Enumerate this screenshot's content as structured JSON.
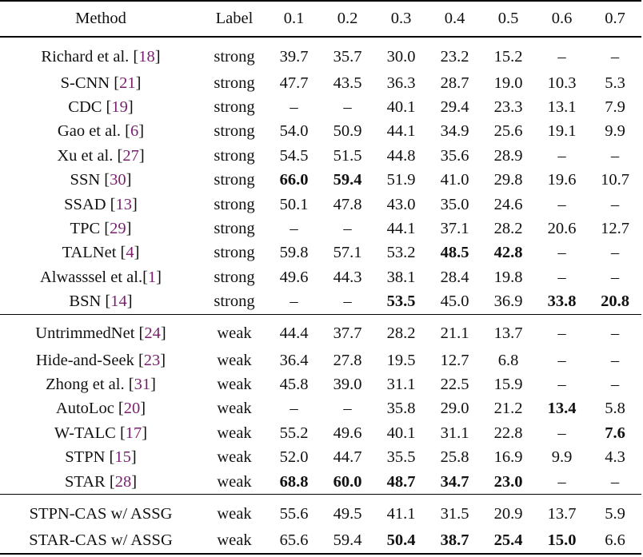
{
  "columns": [
    "Method",
    "Label",
    "0.1",
    "0.2",
    "0.3",
    "0.4",
    "0.5",
    "0.6",
    "0.7"
  ],
  "groups": [
    {
      "rows": [
        {
          "name": "Richard et al. [",
          "cite": "18",
          "close": "]",
          "label": "strong",
          "values": [
            "39.7",
            "35.7",
            "30.0",
            "23.2",
            "15.2",
            "–",
            "–"
          ],
          "bold": []
        },
        {
          "name": "S-CNN [",
          "cite": "21",
          "close": "]",
          "label": "strong",
          "values": [
            "47.7",
            "43.5",
            "36.3",
            "28.7",
            "19.0",
            "10.3",
            "5.3"
          ],
          "bold": []
        },
        {
          "name": "CDC [",
          "cite": "19",
          "close": "]",
          "label": "strong",
          "values": [
            "–",
            "–",
            "40.1",
            "29.4",
            "23.3",
            "13.1",
            "7.9"
          ],
          "bold": []
        },
        {
          "name": "Gao et al. [",
          "cite": "6",
          "close": "]",
          "label": "strong",
          "values": [
            "54.0",
            "50.9",
            "44.1",
            "34.9",
            "25.6",
            "19.1",
            "9.9"
          ],
          "bold": []
        },
        {
          "name": "Xu et al. [",
          "cite": "27",
          "close": "]",
          "label": "strong",
          "values": [
            "54.5",
            "51.5",
            "44.8",
            "35.6",
            "28.9",
            "–",
            "–"
          ],
          "bold": []
        },
        {
          "name": "SSN [",
          "cite": "30",
          "close": "]",
          "label": "strong",
          "values": [
            "66.0",
            "59.4",
            "51.9",
            "41.0",
            "29.8",
            "19.6",
            "10.7"
          ],
          "bold": [
            0,
            1
          ]
        },
        {
          "name": "SSAD [",
          "cite": "13",
          "close": "]",
          "label": "strong",
          "values": [
            "50.1",
            "47.8",
            "43.0",
            "35.0",
            "24.6",
            "–",
            "–"
          ],
          "bold": []
        },
        {
          "name": "TPC [",
          "cite": "29",
          "close": "]",
          "label": "strong",
          "values": [
            "–",
            "–",
            "44.1",
            "37.1",
            "28.2",
            "20.6",
            "12.7"
          ],
          "bold": []
        },
        {
          "name": "TALNet [",
          "cite": "4",
          "close": "]",
          "label": "strong",
          "values": [
            "59.8",
            "57.1",
            "53.2",
            "48.5",
            "42.8",
            "–",
            "–"
          ],
          "bold": [
            3,
            4
          ]
        },
        {
          "name": "Alwasssel et al.[",
          "cite": "1",
          "close": "]",
          "label": "strong",
          "values": [
            "49.6",
            "44.3",
            "38.1",
            "28.4",
            "19.8",
            "–",
            "–"
          ],
          "bold": []
        },
        {
          "name": "BSN [",
          "cite": "14",
          "close": "]",
          "label": "strong",
          "values": [
            "–",
            "–",
            "53.5",
            "45.0",
            "36.9",
            "33.8",
            "20.8"
          ],
          "bold": [
            2,
            5,
            6
          ]
        }
      ]
    },
    {
      "rows": [
        {
          "name": "UntrimmedNet [",
          "cite": "24",
          "close": "]",
          "label": "weak",
          "values": [
            "44.4",
            "37.7",
            "28.2",
            "21.1",
            "13.7",
            "–",
            "–"
          ],
          "bold": []
        },
        {
          "name": "Hide-and-Seek [",
          "cite": "23",
          "close": "]",
          "label": "weak",
          "values": [
            "36.4",
            "27.8",
            "19.5",
            "12.7",
            "6.8",
            "–",
            "–"
          ],
          "bold": []
        },
        {
          "name": "Zhong et al. [",
          "cite": "31",
          "close": "]",
          "label": "weak",
          "values": [
            "45.8",
            "39.0",
            "31.1",
            "22.5",
            "15.9",
            "–",
            "–"
          ],
          "bold": []
        },
        {
          "name": "AutoLoc [",
          "cite": "20",
          "close": "]",
          "label": "weak",
          "values": [
            "–",
            "–",
            "35.8",
            "29.0",
            "21.2",
            "13.4",
            "5.8"
          ],
          "bold": [
            5
          ]
        },
        {
          "name": "W-TALC [",
          "cite": "17",
          "close": "]",
          "label": "weak",
          "values": [
            "55.2",
            "49.6",
            "40.1",
            "31.1",
            "22.8",
            "–",
            "7.6"
          ],
          "bold": [
            6
          ]
        },
        {
          "name": "STPN [",
          "cite": "15",
          "close": "]",
          "label": "weak",
          "values": [
            "52.0",
            "44.7",
            "35.5",
            "25.8",
            "16.9",
            "9.9",
            "4.3"
          ],
          "bold": []
        },
        {
          "name": "STAR [",
          "cite": "28",
          "close": "]",
          "label": "weak",
          "values": [
            "68.8",
            "60.0",
            "48.7",
            "34.7",
            "23.0",
            "–",
            "–"
          ],
          "bold": [
            0,
            1,
            2,
            3,
            4
          ]
        }
      ]
    },
    {
      "rows": [
        {
          "name": "STPN-CAS w/ ASSG",
          "cite": "",
          "close": "",
          "label": "weak",
          "values": [
            "55.6",
            "49.5",
            "41.1",
            "31.5",
            "20.9",
            "13.7",
            "5.9"
          ],
          "bold": []
        },
        {
          "name": "STAR-CAS w/ ASSG",
          "cite": "",
          "close": "",
          "label": "weak",
          "values": [
            "65.6",
            "59.4",
            "50.4",
            "38.7",
            "25.4",
            "15.0",
            "6.6"
          ],
          "bold": [
            2,
            3,
            4,
            5
          ]
        }
      ]
    }
  ],
  "colors": {
    "citation": "#7a1f6e",
    "text": "#111111",
    "rule": "#000000"
  }
}
